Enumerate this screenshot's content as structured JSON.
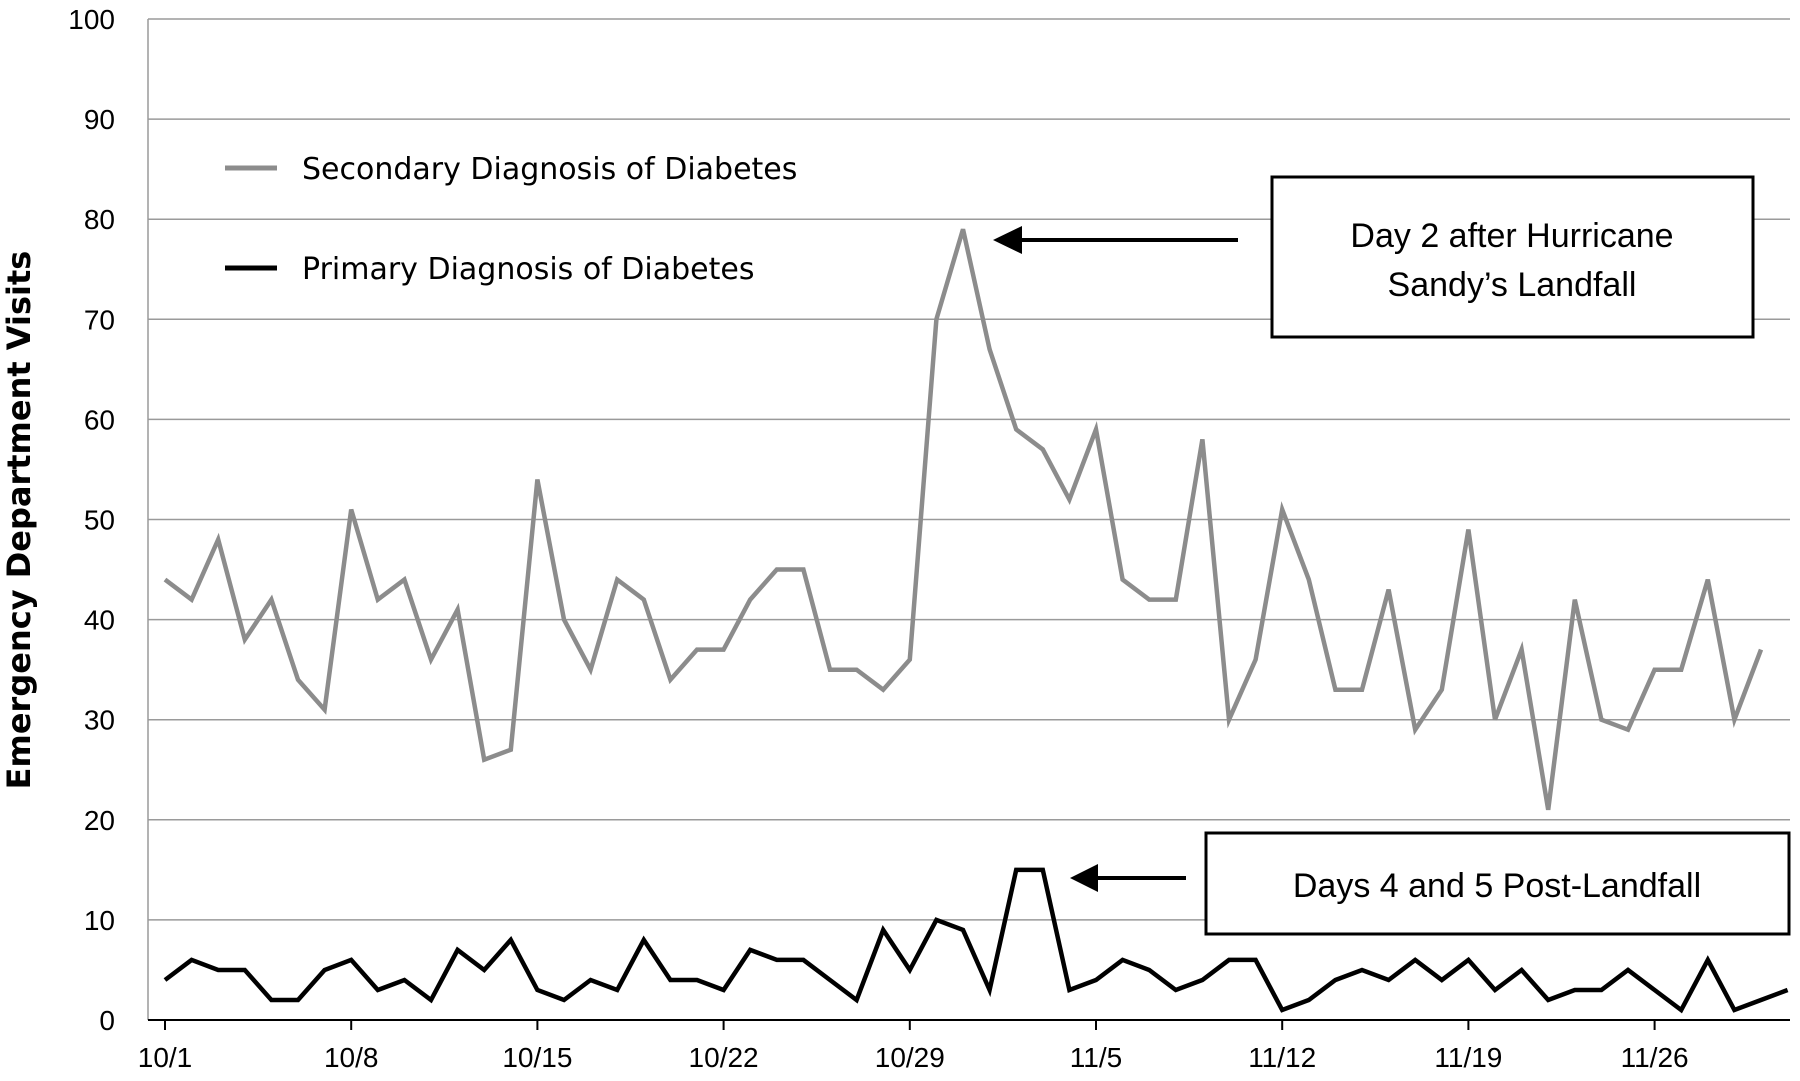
{
  "chart_data": {
    "type": "line",
    "title": "",
    "xlabel": "",
    "ylabel": "Emergency Department Visits",
    "ylim": [
      0,
      100
    ],
    "yticks": [
      0,
      10,
      20,
      30,
      40,
      50,
      60,
      70,
      80,
      90,
      100
    ],
    "x_tick_labels": [
      "10/1",
      "10/8",
      "10/15",
      "10/22",
      "10/29",
      "11/5",
      "11/12",
      "11/19",
      "11/26"
    ],
    "x": [
      "10/1",
      "10/2",
      "10/3",
      "10/4",
      "10/5",
      "10/6",
      "10/7",
      "10/8",
      "10/9",
      "10/10",
      "10/11",
      "10/12",
      "10/13",
      "10/14",
      "10/15",
      "10/16",
      "10/17",
      "10/18",
      "10/19",
      "10/20",
      "10/21",
      "10/22",
      "10/23",
      "10/24",
      "10/25",
      "10/26",
      "10/27",
      "10/28",
      "10/29",
      "10/30",
      "10/31",
      "11/1",
      "11/2",
      "11/3",
      "11/4",
      "11/5",
      "11/6",
      "11/7",
      "11/8",
      "11/9",
      "11/10",
      "11/11",
      "11/12",
      "11/13",
      "11/14",
      "11/15",
      "11/16",
      "11/17",
      "11/18",
      "11/19",
      "11/20",
      "11/21",
      "11/22",
      "11/23",
      "11/24",
      "11/25",
      "11/26",
      "11/27",
      "11/28",
      "11/29",
      "11/30",
      "12/1"
    ],
    "grid": true,
    "legend_position": "top-left",
    "series": [
      {
        "name": "Secondary Diagnosis of Diabetes",
        "color": "#8c8c8c",
        "values": [
          44,
          42,
          48,
          38,
          42,
          34,
          31,
          51,
          42,
          44,
          36,
          41,
          26,
          27,
          54,
          40,
          35,
          44,
          42,
          34,
          37,
          37,
          42,
          45,
          45,
          35,
          35,
          33,
          36,
          70,
          79,
          67,
          59,
          57,
          52,
          59,
          44,
          42,
          42,
          58,
          30,
          36,
          51,
          44,
          33,
          33,
          43,
          29,
          33,
          49,
          30,
          37,
          21,
          42,
          30,
          29,
          35,
          35,
          44,
          30,
          37,
          null
        ]
      },
      {
        "name": "Primary Diagnosis of Diabetes",
        "color": "#000000",
        "values": [
          4,
          6,
          5,
          5,
          2,
          2,
          5,
          6,
          3,
          4,
          2,
          7,
          5,
          8,
          3,
          2,
          4,
          3,
          8,
          4,
          4,
          3,
          7,
          6,
          6,
          4,
          2,
          9,
          5,
          10,
          9,
          3,
          15,
          15,
          3,
          4,
          6,
          5,
          3,
          4,
          6,
          6,
          1,
          2,
          4,
          5,
          4,
          6,
          4,
          6,
          3,
          5,
          2,
          3,
          3,
          5,
          3,
          1,
          6,
          1,
          2,
          3
        ]
      }
    ],
    "annotations": [
      {
        "lines": [
          "Day 2 after Hurricane",
          "Sandy’s Landfall"
        ],
        "points_to": {
          "x": "10/31",
          "y": 79
        }
      },
      {
        "lines": [
          "Days 4 and 5 Post-Landfall"
        ],
        "points_to": {
          "x": "11/3",
          "y": 15
        }
      }
    ]
  }
}
